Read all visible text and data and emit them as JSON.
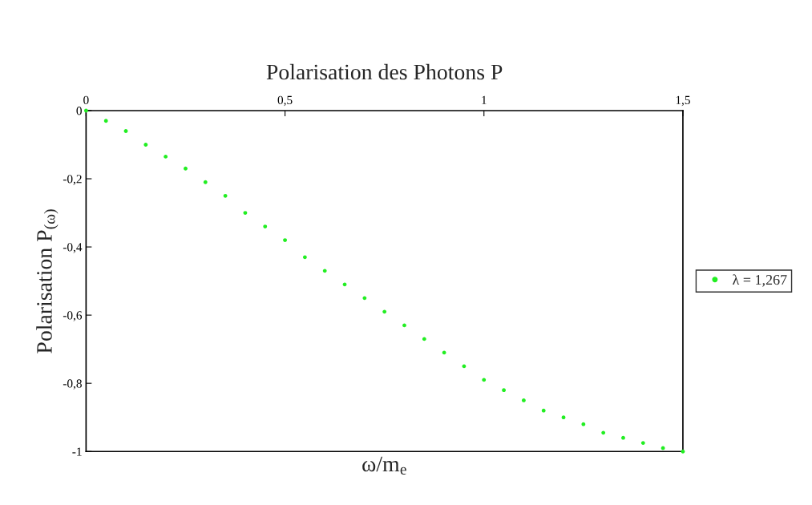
{
  "chart_data": {
    "type": "scatter",
    "title": "Polarisation des Photons P",
    "xlabel": "ω/m$_{e}$",
    "ylabel": "Polarisation P$_{(ω)}$",
    "x": [
      0,
      0.05,
      0.1,
      0.15,
      0.2,
      0.25,
      0.3,
      0.35,
      0.4,
      0.45,
      0.5,
      0.55,
      0.6,
      0.65,
      0.7,
      0.75,
      0.8,
      0.85,
      0.9,
      0.95,
      1.0,
      1.05,
      1.1,
      1.15,
      1.2,
      1.25,
      1.3,
      1.35,
      1.4,
      1.45,
      1.5
    ],
    "series": [
      {
        "name": "λ = 1,267",
        "color": "#22ee22",
        "values": [
          0,
          -0.03,
          -0.06,
          -0.1,
          -0.135,
          -0.17,
          -0.21,
          -0.25,
          -0.3,
          -0.34,
          -0.38,
          -0.43,
          -0.47,
          -0.51,
          -0.55,
          -0.59,
          -0.63,
          -0.67,
          -0.71,
          -0.75,
          -0.79,
          -0.82,
          -0.85,
          -0.88,
          -0.9,
          -0.92,
          -0.945,
          -0.96,
          -0.975,
          -0.99,
          -1.0
        ]
      }
    ],
    "xlim": [
      0,
      1.5
    ],
    "xticks": [
      0,
      {
        "value": 0.5,
        "label": "0,5"
      },
      1,
      {
        "value": 1.5,
        "label": "1,5"
      }
    ],
    "ylim": [
      -1,
      0
    ],
    "yticks": [
      0,
      {
        "value": -0.2,
        "label": "-0,2"
      },
      {
        "value": -0.4,
        "label": "-0,4"
      },
      {
        "value": -0.6,
        "label": "-0,6"
      },
      {
        "value": -0.8,
        "label": "-0,8"
      },
      -1
    ],
    "grid": false,
    "legend": "right",
    "marker": "circle"
  }
}
